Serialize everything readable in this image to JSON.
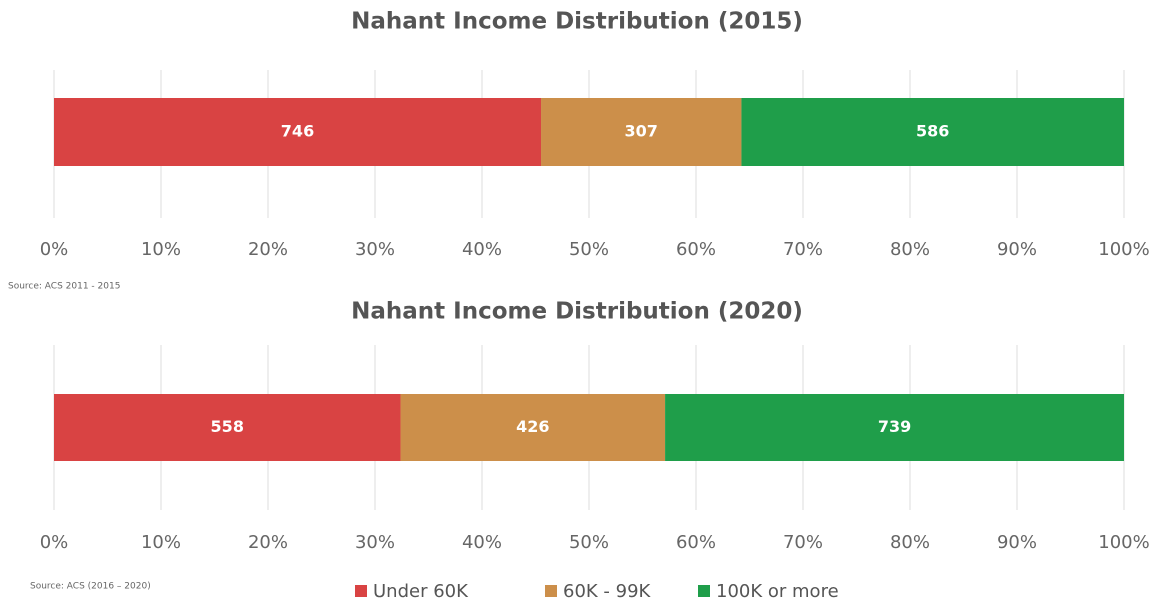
{
  "chart_data": [
    {
      "type": "bar",
      "stacked": "percent",
      "orientation": "horizontal",
      "title": "Nahant Income Distribution (2015)",
      "source": "Source: ACS 2011 - 2015",
      "categories": [
        null
      ],
      "series": [
        {
          "color": "#d94343",
          "values": [
            746
          ]
        },
        {
          "color": "#cc8f4a",
          "values": [
            307
          ]
        },
        {
          "color": "#1f9e4a",
          "values": [
            586
          ]
        }
      ],
      "xlim": [
        0,
        100
      ],
      "xticks": [
        {
          "value": 0,
          "label": "0%"
        },
        {
          "value": 10,
          "label": "10%"
        },
        {
          "value": 20,
          "label": "20%"
        },
        {
          "value": 30,
          "label": "30%"
        },
        {
          "value": 40,
          "label": "40%"
        },
        {
          "value": 50,
          "label": "50%"
        },
        {
          "value": 60,
          "label": "60%"
        },
        {
          "value": 70,
          "label": "70%"
        },
        {
          "value": 80,
          "label": "80%"
        },
        {
          "value": 90,
          "label": "90%"
        },
        {
          "value": 100,
          "label": "100%"
        }
      ],
      "grid": true
    },
    {
      "type": "bar",
      "stacked": "percent",
      "orientation": "horizontal",
      "title": "Nahant Income Distribution (2020)",
      "source": "Source: ACS (2016 – 2020)",
      "categories": [
        null
      ],
      "series": [
        {
          "name": "Under 60K",
          "color": "#d94343",
          "values": [
            558
          ]
        },
        {
          "name": "60K - 99K",
          "color": "#cc8f4a",
          "values": [
            426
          ]
        },
        {
          "name": "100K or more",
          "color": "#1f9e4a",
          "values": [
            739
          ]
        }
      ],
      "xlim": [
        0,
        100
      ],
      "xticks": [
        {
          "value": 0,
          "label": "0%"
        },
        {
          "value": 10,
          "label": "10%"
        },
        {
          "value": 20,
          "label": "20%"
        },
        {
          "value": 30,
          "label": "30%"
        },
        {
          "value": 40,
          "label": "40%"
        },
        {
          "value": 50,
          "label": "50%"
        },
        {
          "value": 60,
          "label": "60%"
        },
        {
          "value": 70,
          "label": "70%"
        },
        {
          "value": 80,
          "label": "80%"
        },
        {
          "value": 90,
          "label": "90%"
        },
        {
          "value": 100,
          "label": "100%"
        }
      ],
      "grid": true,
      "legend": "bottom"
    }
  ]
}
